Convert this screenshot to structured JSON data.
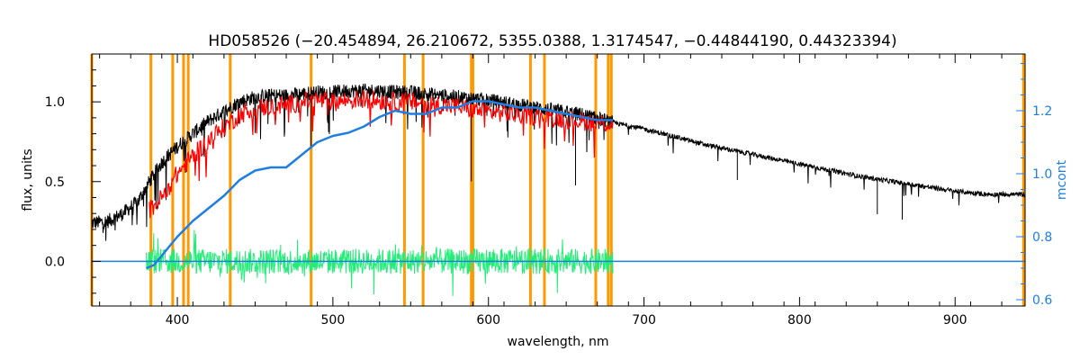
{
  "chart_data": {
    "type": "line",
    "title": "HD058526   (−20.454894, 26.210672, 5355.0388, 1.3174547, −0.44844190, 0.44323394)",
    "xlabel": "wavelength, nm",
    "ylabel": "flux, units",
    "y2label": "mcont",
    "xlim": [
      345,
      945
    ],
    "ylim": [
      -0.28,
      1.3
    ],
    "y2lim": [
      0.58,
      1.38
    ],
    "xticks": [
      400,
      500,
      600,
      700,
      800,
      900
    ],
    "yticks": [
      0.0,
      0.5,
      1.0
    ],
    "y2ticks": [
      0.6,
      0.8,
      1.0,
      1.2
    ],
    "grid": false,
    "colors": {
      "observed": "#000000",
      "model": "#ff0000",
      "residual": "#22ee77",
      "continuum": "#1f7fe0",
      "line_markers": "#ff9900",
      "zero_line": "#1f7fe0",
      "y2axis": "#1f7fe0"
    },
    "line_markers_nm": [
      345,
      383,
      397,
      404,
      407,
      434,
      486,
      546,
      558,
      589,
      590,
      627,
      636,
      669,
      677,
      679,
      944
    ],
    "series": [
      {
        "key": "observed",
        "x": [
          345,
          355,
          365,
          375,
          382,
          390,
          400,
          410,
          420,
          430,
          440,
          450,
          460,
          470,
          480,
          490,
          500,
          510,
          520,
          530,
          540,
          550,
          560,
          570,
          580,
          590,
          600,
          620,
          640,
          660,
          680,
          700,
          720,
          740,
          760,
          780,
          800,
          820,
          840,
          860,
          880,
          900,
          920,
          940,
          945
        ],
        "y": [
          0.24,
          0.25,
          0.3,
          0.38,
          0.5,
          0.62,
          0.72,
          0.8,
          0.88,
          0.94,
          1.0,
          1.03,
          1.04,
          1.04,
          1.05,
          1.06,
          1.06,
          1.07,
          1.07,
          1.07,
          1.06,
          1.06,
          1.05,
          1.04,
          1.03,
          1.02,
          1.01,
          0.98,
          0.95,
          0.92,
          0.87,
          0.83,
          0.78,
          0.73,
          0.69,
          0.65,
          0.61,
          0.57,
          0.53,
          0.5,
          0.47,
          0.44,
          0.42,
          0.42,
          0.42
        ]
      },
      {
        "key": "model",
        "x": [
          382,
          390,
          400,
          410,
          420,
          430,
          440,
          450,
          460,
          470,
          480,
          490,
          500,
          510,
          520,
          530,
          540,
          550,
          560,
          570,
          580,
          590,
          600,
          620,
          640,
          660,
          680
        ],
        "y": [
          0.32,
          0.4,
          0.55,
          0.66,
          0.76,
          0.84,
          0.92,
          0.96,
          0.97,
          0.98,
          1.0,
          1.01,
          1.0,
          1.01,
          1.02,
          1.01,
          1.0,
          1.0,
          0.99,
          0.98,
          0.97,
          0.95,
          0.94,
          0.92,
          0.9,
          0.88,
          0.86
        ]
      },
      {
        "key": "continuum",
        "axis": "y2",
        "x": [
          380,
          385,
          390,
          395,
          400,
          410,
          420,
          430,
          440,
          450,
          460,
          470,
          480,
          490,
          500,
          510,
          520,
          530,
          540,
          550,
          560,
          570,
          580,
          590,
          600,
          610,
          620,
          630,
          640,
          650,
          660,
          670,
          680
        ],
        "y": [
          0.7,
          0.71,
          0.74,
          0.77,
          0.8,
          0.85,
          0.89,
          0.93,
          0.98,
          1.01,
          1.02,
          1.02,
          1.06,
          1.1,
          1.12,
          1.13,
          1.15,
          1.18,
          1.2,
          1.19,
          1.19,
          1.21,
          1.21,
          1.23,
          1.23,
          1.22,
          1.21,
          1.21,
          1.2,
          1.19,
          1.18,
          1.17,
          1.17
        ]
      },
      {
        "key": "residual",
        "x_range": [
          380,
          680
        ],
        "y_range": [
          -0.25,
          0.25
        ]
      }
    ]
  }
}
